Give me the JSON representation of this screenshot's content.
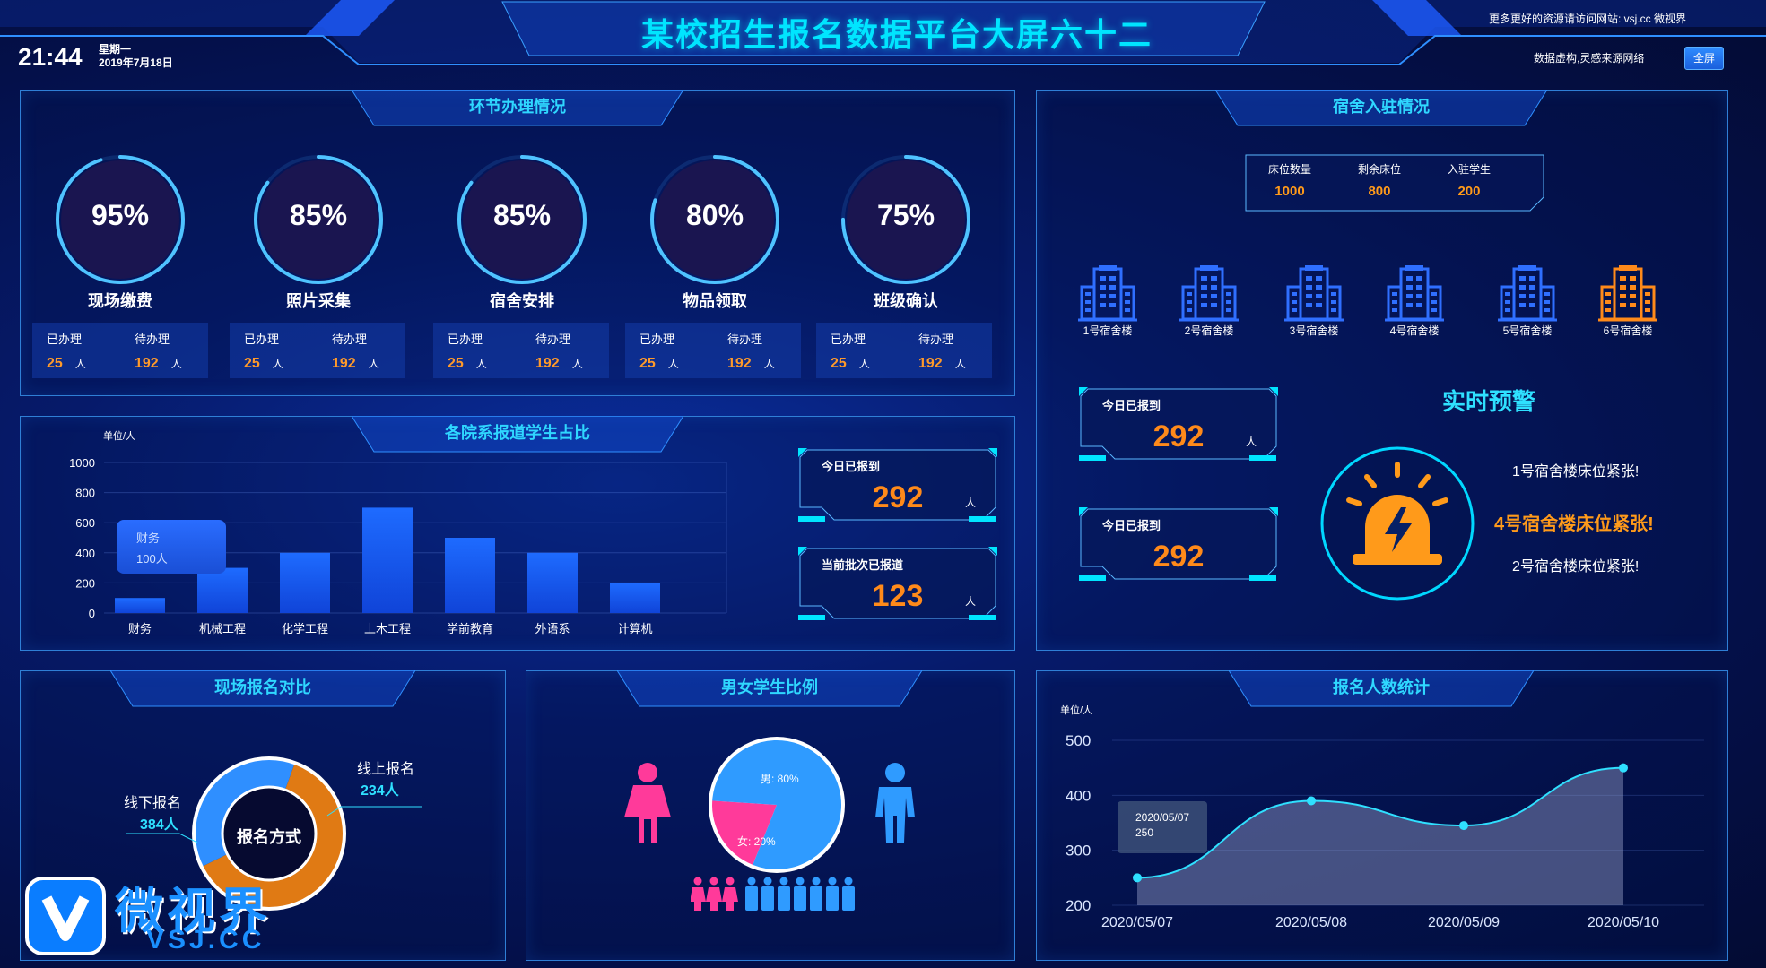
{
  "header": {
    "title": "某校招生报名数据平台大屏六十二",
    "time": "21:44",
    "weekday": "星期一",
    "date": "2019年7月18日",
    "top_link": "更多更好的资源请访问网站: vsj.cc 微视界",
    "note": "数据虚构,灵感来源网络",
    "fullscreen": "全屏"
  },
  "process": {
    "title": "环节办理情况",
    "items": [
      {
        "pct": "95%",
        "value": 95,
        "name": "现场缴费",
        "done_label": "已办理",
        "done": "25",
        "wait_label": "待办理",
        "wait": "192",
        "unit": "人"
      },
      {
        "pct": "85%",
        "value": 85,
        "name": "照片采集",
        "done_label": "已办理",
        "done": "25",
        "wait_label": "待办理",
        "wait": "192",
        "unit": "人"
      },
      {
        "pct": "85%",
        "value": 85,
        "name": "宿舍安排",
        "done_label": "已办理",
        "done": "25",
        "wait_label": "待办理",
        "wait": "192",
        "unit": "人"
      },
      {
        "pct": "80%",
        "value": 80,
        "name": "物品领取",
        "done_label": "已办理",
        "done": "25",
        "wait_label": "待办理",
        "wait": "192",
        "unit": "人"
      },
      {
        "pct": "75%",
        "value": 75,
        "name": "班级确认",
        "done_label": "已办理",
        "done": "25",
        "wait_label": "待办理",
        "wait": "192",
        "unit": "人"
      }
    ]
  },
  "dept": {
    "title": "各院系报道学生占比",
    "tooltip_name": "财务",
    "tooltip_value": "100人"
  },
  "today_reported": {
    "label": "今日已报到",
    "value": "292",
    "unit": "人"
  },
  "batch_reported": {
    "label": "当前批次已报道",
    "value": "123",
    "unit": "人"
  },
  "dorm": {
    "title": "宿舍入驻情况",
    "summary": [
      {
        "label": "床位数量",
        "value": "1000"
      },
      {
        "label": "剩余床位",
        "value": "800"
      },
      {
        "label": "入驻学生",
        "value": "200"
      }
    ],
    "buildings": [
      {
        "name": "1号宿舍楼",
        "color": "#2f6fff"
      },
      {
        "name": "2号宿舍楼",
        "color": "#2f6fff"
      },
      {
        "name": "3号宿舍楼",
        "color": "#2f6fff"
      },
      {
        "name": "4号宿舍楼",
        "color": "#2f6fff"
      },
      {
        "name": "5号宿舍楼",
        "color": "#2f6fff"
      },
      {
        "name": "6号宿舍楼",
        "color": "#ff8a1a"
      }
    ],
    "counter1": {
      "label": "今日已报到",
      "value": "292",
      "unit": "人"
    },
    "counter2": {
      "label": "今日已报到",
      "value": "292"
    }
  },
  "alert": {
    "title": "实时预警",
    "items": [
      {
        "text": "1号宿舍楼床位紧张!",
        "highlight": false
      },
      {
        "text": "4号宿舍楼床位紧张!",
        "highlight": true
      },
      {
        "text": "2号宿舍楼床位紧张!",
        "highlight": false
      }
    ]
  },
  "onsite": {
    "title": "现场报名对比",
    "center": "报名方式",
    "offline_label": "线下报名",
    "offline_value": "384人",
    "online_label": "线上报名",
    "online_value": "234人"
  },
  "gender": {
    "title": "男女学生比例",
    "male_label": "男: 80%",
    "female_label": "女: 20%"
  },
  "signup": {
    "title": "报名人数统计",
    "tooltip_date": "2020/05/07",
    "tooltip_value": "250"
  },
  "watermark": {
    "logo": "微视界",
    "site": "VSJ.CC"
  },
  "colors": {
    "accent": "#00e5ff",
    "orange": "#ff8a1a",
    "bar": "#1f62ff",
    "pink": "#ff3a9a",
    "male": "#2f9bff"
  },
  "chart_data": [
    {
      "type": "bar",
      "title": "各院系报道学生占比",
      "ylabel": "单位/人",
      "categories": [
        "财务",
        "机械工程",
        "化学工程",
        "土木工程",
        "学前教育",
        "外语系",
        "计算机"
      ],
      "values": [
        100,
        300,
        400,
        700,
        500,
        400,
        200
      ],
      "yticks": [
        "0",
        "200",
        "400",
        "600",
        "800",
        "1000"
      ],
      "ylim": [
        0,
        1000
      ]
    },
    {
      "type": "pie",
      "title": "现场报名对比",
      "slices": [
        {
          "name": "线下报名",
          "value": 384,
          "color": "#e07a14"
        },
        {
          "name": "线上报名",
          "value": 234,
          "color": "#2f8fff"
        }
      ]
    },
    {
      "type": "pie",
      "title": "男女学生比例",
      "slices": [
        {
          "name": "男",
          "value": 80,
          "color": "#2f9bff"
        },
        {
          "name": "女",
          "value": 20,
          "color": "#ff3a9a"
        }
      ]
    },
    {
      "type": "area",
      "title": "报名人数统计",
      "ylabel": "单位/人",
      "x": [
        "2020/05/07",
        "2020/05/08",
        "2020/05/09",
        "2020/05/10"
      ],
      "values": [
        250,
        390,
        345,
        450
      ],
      "yticks": [
        "200",
        "300",
        "400",
        "500"
      ],
      "ylim": [
        200,
        500
      ]
    }
  ]
}
